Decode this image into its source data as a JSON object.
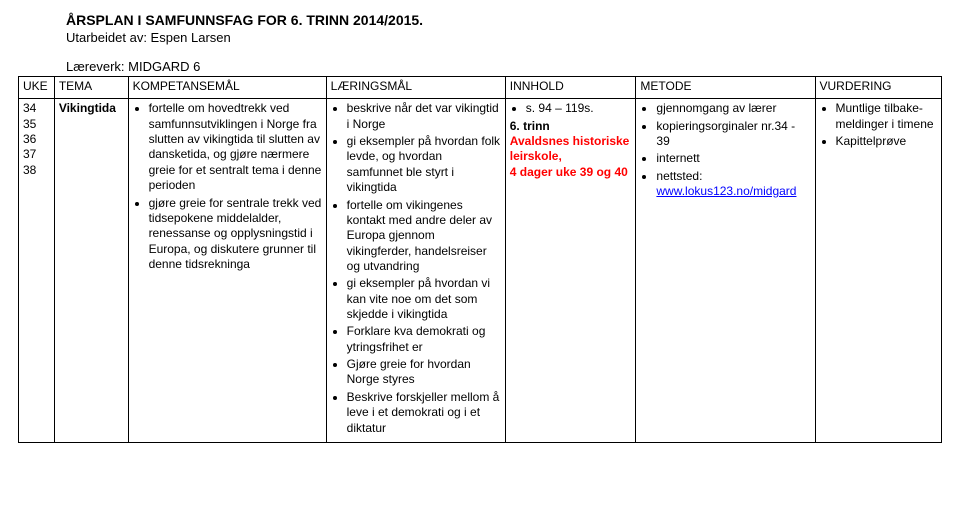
{
  "header": {
    "title": "ÅRSPLAN I SAMFUNNSFAG FOR 6. TRINN 2014/2015.",
    "author_line": "Utarbeidet av: Espen Larsen",
    "bookset": "Læreverk: MIDGARD 6"
  },
  "columns": {
    "uke": "UKE",
    "tema": "TEMA",
    "komp": "KOMPETANSEMÅL",
    "laer": "LÆRINGSMÅL",
    "inn": "INNHOLD",
    "met": "METODE",
    "vurd": "VURDERING"
  },
  "row": {
    "uke": [
      "34",
      "35",
      "36",
      "37",
      "38"
    ],
    "tema": "Vikingtida",
    "komp": [
      "fortelle om hovedtrekk ved samfunnsutviklingen i Norge fra slutten av vikingtida til slutten av dansketida, og gjøre nærmere greie for et sentralt tema i denne perioden",
      "gjøre greie for sentrale trekk ved tidsepokene middelalder, renessanse og opplysningstid i Europa, og diskutere grunner til denne tidsrekninga"
    ],
    "laer": [
      "beskrive når det var vikingtid i Norge",
      "gi eksempler på hvordan folk levde, og hvordan samfunnet ble styrt i vikingtida",
      "fortelle om vikingenes kontakt med andre deler av Europa gjennom vikingferder, handelsreiser og utvandring",
      "gi eksempler på hvordan vi kan vite noe om det som skjedde i vikingtida",
      "Forklare kva demokrati og ytringsfrihet er",
      "Gjøre greie for hvordan Norge styres",
      "Beskrive forskjeller mellom å leve i et demokrati og i et diktatur"
    ],
    "inn": {
      "pages": "s. 94 – 119s.",
      "trinn": "6. trinn",
      "red1": "Avaldsnes historiske leirskole,",
      "red2": "4 dager uke 39 og 40"
    },
    "met": {
      "b1": "gjennomgang av lærer",
      "b2": "kopieringsorginaler nr.34 - 39",
      "b3": "internett",
      "b4_prefix": "nettsted: ",
      "b4_link": "www.lokus123.no/midgard"
    },
    "vurd": [
      "Muntlige tilbake-meldinger i timene",
      "Kapittelprøve"
    ]
  }
}
